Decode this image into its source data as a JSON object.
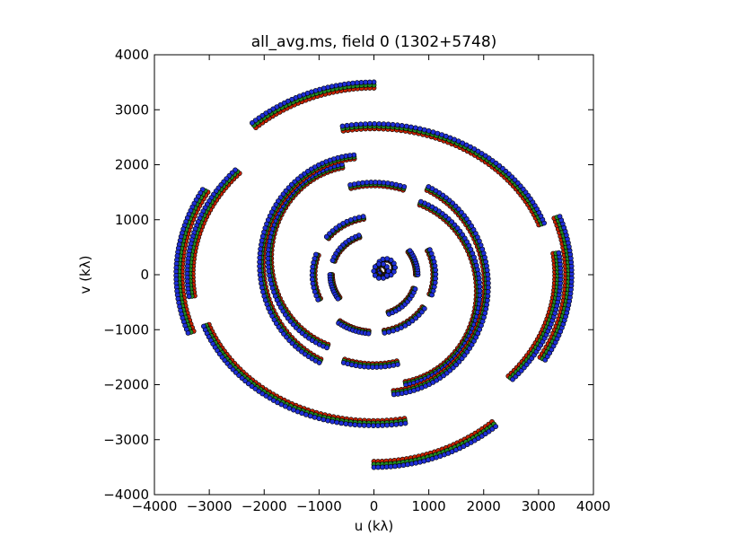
{
  "chart_data": {
    "type": "scatter",
    "title": "all_avg.ms, field 0 (1302+5748)",
    "xlabel": "u (kλ)",
    "ylabel": "v (kλ)",
    "xlim": [
      -4000,
      4000
    ],
    "ylim": [
      -4000,
      4000
    ],
    "xticks": [
      -4000,
      -3000,
      -2000,
      -1000,
      0,
      1000,
      2000,
      3000,
      4000
    ],
    "yticks": [
      -4000,
      -3000,
      -2000,
      -1000,
      0,
      1000,
      2000,
      3000,
      4000
    ],
    "grid": false,
    "legend": "none",
    "series_colors": [
      "#cc2200",
      "#228b22",
      "#1f2fd6"
    ],
    "marker_edge_color": "#000000",
    "tracks": [
      {
        "u0": 220,
        "v0": 130,
        "a": 150,
        "b": 150,
        "t0": 0,
        "t1": 360
      },
      {
        "u0": 130,
        "v0": 65,
        "a": 120,
        "b": 120,
        "t0": 0,
        "t1": 360
      },
      {
        "u0": 0,
        "v0": 0,
        "a": 1100,
        "b": 1050,
        "t0": 100,
        "t1": 140
      },
      {
        "u0": 0,
        "v0": 0,
        "a": 1100,
        "b": 1050,
        "t0": 160,
        "t1": 205
      },
      {
        "u0": 0,
        "v0": 0,
        "a": 1100,
        "b": 1050,
        "t0": 235,
        "t1": 265
      },
      {
        "u0": 0,
        "v0": 0,
        "a": 1100,
        "b": 1050,
        "t0": 280,
        "t1": 325
      },
      {
        "u0": 0,
        "v0": 0,
        "a": 1100,
        "b": 1050,
        "t0": 340,
        "t1": 385
      },
      {
        "u0": 0,
        "v0": 0,
        "a": 780,
        "b": 740,
        "t0": 110,
        "t1": 160
      },
      {
        "u0": 0,
        "v0": 0,
        "a": 780,
        "b": 740,
        "t0": 180,
        "t1": 215
      },
      {
        "u0": 0,
        "v0": 0,
        "a": 780,
        "b": 740,
        "t0": 290,
        "t1": 340
      },
      {
        "u0": 0,
        "v0": 0,
        "a": 780,
        "b": 740,
        "t0": 0,
        "t1": 35
      },
      {
        "u0": 0,
        "v0": 0,
        "a": 1750,
        "b": 1650,
        "t0": 72,
        "t1": 104
      },
      {
        "u0": 0,
        "v0": 0,
        "a": 1750,
        "b": 1650,
        "t0": 252,
        "t1": 284
      },
      {
        "u0": -300,
        "v0": 300,
        "a": 1600,
        "b": 1700,
        "t0": 100,
        "t1": 250
      },
      {
        "u0": 300,
        "v0": -300,
        "a": 1600,
        "b": 1700,
        "t0": 280,
        "t1": 430
      },
      {
        "u0": -200,
        "v0": 200,
        "a": 1850,
        "b": 1950,
        "t0": 95,
        "t1": 245
      },
      {
        "u0": 200,
        "v0": -200,
        "a": 1850,
        "b": 1950,
        "t0": 275,
        "t1": 425
      },
      {
        "u0": 0,
        "v0": 0,
        "a": 3250,
        "b": 2700,
        "t0": 20,
        "t1": 100
      },
      {
        "u0": 0,
        "v0": 0,
        "a": 3250,
        "b": 2700,
        "t0": 200,
        "t1": 280
      },
      {
        "u0": 0,
        "v0": 0,
        "a": 3550,
        "b": 3450,
        "t0": 90,
        "t1": 128
      },
      {
        "u0": 0,
        "v0": 0,
        "a": 3550,
        "b": 3450,
        "t0": 270,
        "t1": 308
      },
      {
        "u0": 0,
        "v0": 0,
        "a": 3550,
        "b": 3050,
        "t0": 150,
        "t1": 200
      },
      {
        "u0": 0,
        "v0": 0,
        "a": 3550,
        "b": 3050,
        "t0": 330,
        "t1": 380
      },
      {
        "u0": 0,
        "v0": 0,
        "a": 3350,
        "b": 2800,
        "t0": 138,
        "t1": 188
      },
      {
        "u0": 0,
        "v0": 0,
        "a": 3350,
        "b": 2800,
        "t0": 318,
        "t1": 368
      }
    ]
  }
}
